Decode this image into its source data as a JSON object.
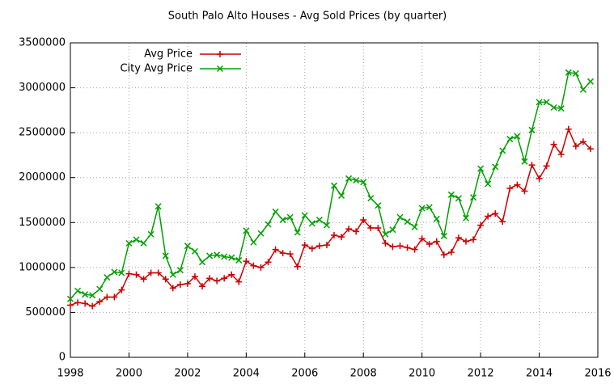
{
  "chart_data": {
    "type": "line",
    "title": "South Palo Alto Houses - Avg Sold Prices (by quarter)",
    "x": [
      1998,
      1998.25,
      1998.5,
      1998.75,
      1999,
      1999.25,
      1999.5,
      1999.75,
      2000,
      2000.25,
      2000.5,
      2000.75,
      2001,
      2001.25,
      2001.5,
      2001.75,
      2002,
      2002.25,
      2002.5,
      2002.75,
      2003,
      2003.25,
      2003.5,
      2003.75,
      2004,
      2004.25,
      2004.5,
      2004.75,
      2005,
      2005.25,
      2005.5,
      2005.75,
      2006,
      2006.25,
      2006.5,
      2006.75,
      2007,
      2007.25,
      2007.5,
      2007.75,
      2008,
      2008.25,
      2008.5,
      2008.75,
      2009,
      2009.25,
      2009.5,
      2009.75,
      2010,
      2010.25,
      2010.5,
      2010.75,
      2011,
      2011.25,
      2011.5,
      2011.75,
      2012,
      2012.25,
      2012.5,
      2012.75,
      2013,
      2013.25,
      2013.5,
      2013.75,
      2014,
      2014.25,
      2014.5,
      2014.75,
      2015,
      2015.25,
      2015.5,
      2015.75
    ],
    "series": [
      {
        "name": "Avg Price",
        "color": "#cc0000",
        "marker": "plus",
        "values": [
          580000,
          610000,
          600000,
          570000,
          620000,
          670000,
          670000,
          750000,
          930000,
          920000,
          870000,
          940000,
          940000,
          870000,
          770000,
          810000,
          820000,
          900000,
          790000,
          880000,
          850000,
          880000,
          920000,
          840000,
          1070000,
          1020000,
          1000000,
          1060000,
          1200000,
          1160000,
          1150000,
          1010000,
          1250000,
          1210000,
          1240000,
          1250000,
          1360000,
          1340000,
          1430000,
          1400000,
          1530000,
          1440000,
          1440000,
          1270000,
          1230000,
          1240000,
          1220000,
          1200000,
          1320000,
          1260000,
          1290000,
          1140000,
          1170000,
          1330000,
          1290000,
          1310000,
          1470000,
          1570000,
          1600000,
          1510000,
          1880000,
          1920000,
          1850000,
          2140000,
          1990000,
          2130000,
          2370000,
          2260000,
          2540000,
          2350000,
          2400000,
          2320000
        ]
      },
      {
        "name": "City Avg Price",
        "color": "#00a000",
        "marker": "cross",
        "values": [
          650000,
          740000,
          700000,
          690000,
          760000,
          890000,
          950000,
          940000,
          1270000,
          1310000,
          1270000,
          1370000,
          1680000,
          1130000,
          920000,
          970000,
          1240000,
          1180000,
          1060000,
          1130000,
          1140000,
          1120000,
          1110000,
          1080000,
          1410000,
          1280000,
          1380000,
          1480000,
          1620000,
          1530000,
          1560000,
          1390000,
          1580000,
          1490000,
          1530000,
          1470000,
          1910000,
          1800000,
          1990000,
          1970000,
          1950000,
          1770000,
          1690000,
          1370000,
          1420000,
          1560000,
          1510000,
          1450000,
          1660000,
          1670000,
          1540000,
          1350000,
          1810000,
          1770000,
          1550000,
          1780000,
          2100000,
          1930000,
          2120000,
          2300000,
          2430000,
          2460000,
          2180000,
          2530000,
          2840000,
          2840000,
          2780000,
          2770000,
          3170000,
          3160000,
          2980000,
          3070000
        ]
      }
    ],
    "xlim": [
      1998,
      2016
    ],
    "xticks": [
      1998,
      2000,
      2002,
      2004,
      2006,
      2008,
      2010,
      2012,
      2014,
      2016
    ],
    "ylim": [
      0,
      3500000
    ],
    "yticks": [
      0,
      500000,
      1000000,
      1500000,
      2000000,
      2500000,
      3000000,
      3500000
    ],
    "grid": true,
    "legend": "top-left"
  }
}
